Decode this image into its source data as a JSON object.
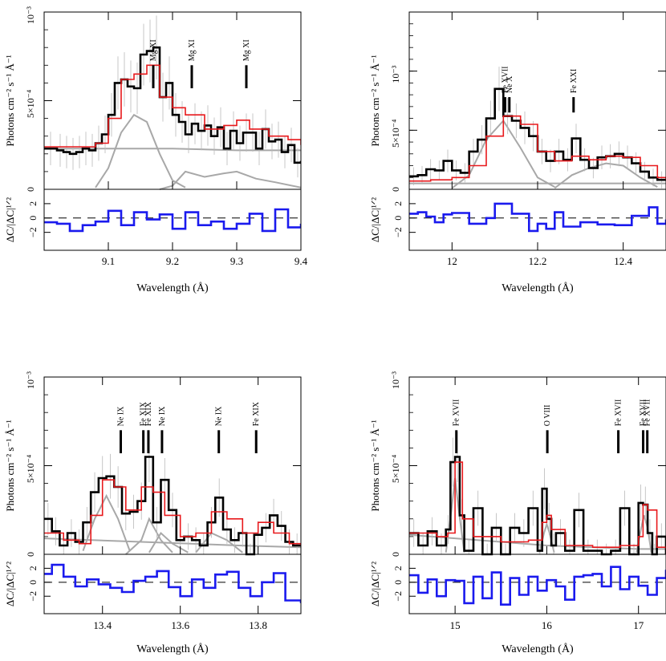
{
  "colors": {
    "data": "#000000",
    "model": "#e8191c",
    "component": "#a8a8a8",
    "residual": "#1a1aee",
    "marker": "#000000"
  },
  "chart_data": [
    {
      "type": "line",
      "panel": "top-left",
      "xlabel": "Wavelength (Å)",
      "ylabel": "Photons cm⁻² s⁻¹ Å⁻¹",
      "res_ylabel": "ΔC/|ΔC|¹ᐟ²",
      "xlim": [
        9.0,
        9.4
      ],
      "ylim": [
        0,
        1.0
      ],
      "y_unit_label": "10⁻³",
      "y_ticks": [
        {
          "v": 0,
          "label": "0"
        },
        {
          "v": 0.5,
          "label": "5×10⁻⁴"
        },
        {
          "v": 1.0,
          "label": "10⁻³"
        }
      ],
      "x_ticks": [
        9.1,
        9.2,
        9.3,
        9.4
      ],
      "res_ylim": [
        -4.5,
        4
      ],
      "res_ticks": [
        {
          "v": 2,
          "label": "2"
        },
        {
          "v": 0,
          "label": "0"
        },
        {
          "v": -2,
          "label": "−2"
        }
      ],
      "lines": [
        {
          "label": "Mg XI",
          "wl": 9.17
        },
        {
          "label": "Mg XI",
          "wl": 9.23
        },
        {
          "label": "Mg XI",
          "wl": 9.315
        }
      ],
      "data_x": [
        9.0,
        9.02,
        9.03,
        9.04,
        9.05,
        9.06,
        9.07,
        9.08,
        9.09,
        9.1,
        9.11,
        9.12,
        9.13,
        9.14,
        9.15,
        9.16,
        9.17,
        9.18,
        9.19,
        9.2,
        9.21,
        9.22,
        9.23,
        9.24,
        9.25,
        9.26,
        9.27,
        9.28,
        9.29,
        9.3,
        9.31,
        9.32,
        9.33,
        9.34,
        9.35,
        9.36,
        9.37,
        9.38,
        9.39,
        9.4
      ],
      "data_y": [
        0.23,
        0.22,
        0.21,
        0.2,
        0.21,
        0.23,
        0.22,
        0.26,
        0.31,
        0.42,
        0.6,
        0.62,
        0.58,
        0.57,
        0.76,
        0.78,
        0.8,
        0.52,
        0.6,
        0.42,
        0.38,
        0.31,
        0.37,
        0.33,
        0.36,
        0.3,
        0.35,
        0.23,
        0.33,
        0.26,
        0.32,
        0.32,
        0.23,
        0.34,
        0.27,
        0.28,
        0.21,
        0.25,
        0.15,
        0.16
      ],
      "model_x": [
        9.0,
        9.05,
        9.08,
        9.1,
        9.12,
        9.14,
        9.16,
        9.18,
        9.2,
        9.22,
        9.25,
        9.28,
        9.3,
        9.32,
        9.35,
        9.38,
        9.4
      ],
      "model_y": [
        0.24,
        0.24,
        0.26,
        0.4,
        0.62,
        0.65,
        0.7,
        0.52,
        0.46,
        0.42,
        0.34,
        0.36,
        0.39,
        0.34,
        0.3,
        0.28,
        0.25
      ],
      "components": [
        {
          "x": [
            9.0,
            9.1,
            9.2,
            9.3,
            9.4
          ],
          "y": [
            0.23,
            0.23,
            0.23,
            0.22,
            0.22
          ]
        },
        {
          "x": [
            9.08,
            9.1,
            9.12,
            9.14,
            9.16,
            9.18,
            9.2,
            9.22
          ],
          "y": [
            0.01,
            0.12,
            0.32,
            0.42,
            0.38,
            0.2,
            0.05,
            0.01
          ]
        },
        {
          "x": [
            9.18,
            9.2,
            9.22,
            9.25,
            9.28,
            9.3,
            9.33,
            9.36,
            9.4
          ],
          "y": [
            0.0,
            0.02,
            0.1,
            0.07,
            0.09,
            0.1,
            0.06,
            0.04,
            0.01
          ]
        }
      ],
      "residual_x": [
        9.0,
        9.02,
        9.04,
        9.06,
        9.08,
        9.1,
        9.12,
        9.14,
        9.16,
        9.18,
        9.2,
        9.22,
        9.24,
        9.26,
        9.28,
        9.3,
        9.32,
        9.34,
        9.36,
        9.38,
        9.4
      ],
      "residual_y": [
        -0.6,
        -0.8,
        -1.8,
        -1.0,
        -0.5,
        1.0,
        -1.0,
        0.8,
        -0.2,
        0.5,
        -1.5,
        0.8,
        -1.0,
        -0.5,
        -1.5,
        -0.8,
        0.6,
        -1.8,
        1.2,
        -1.3,
        -0.8
      ]
    },
    {
      "type": "line",
      "panel": "top-right",
      "xlabel": "Wavelength (Å)",
      "ylabel": "Photons cm⁻² s⁻¹ Å⁻¹",
      "res_ylabel": "ΔC/|ΔC|¹ᐟ²",
      "xlim": [
        11.9,
        12.5
      ],
      "ylim": [
        0,
        1.5
      ],
      "y_ticks": [
        {
          "v": 0,
          "label": "0"
        },
        {
          "v": 0.5,
          "label": "5×10⁻⁴"
        },
        {
          "v": 1.0,
          "label": "10⁻³"
        }
      ],
      "x_ticks": [
        12.0,
        12.2,
        12.4
      ],
      "res_ylim": [
        -4.5,
        4
      ],
      "res_ticks": [
        {
          "v": 2,
          "label": "2"
        },
        {
          "v": 0,
          "label": "0"
        },
        {
          "v": -2,
          "label": "−2"
        }
      ],
      "lines": [
        {
          "label": "Fe XVII",
          "wl": 12.124
        },
        {
          "label": "Ne X",
          "wl": 12.134
        },
        {
          "label": "Fe XXI",
          "wl": 12.284
        }
      ],
      "data_x": [
        11.9,
        11.92,
        11.94,
        11.96,
        11.98,
        12.0,
        12.02,
        12.04,
        12.06,
        12.08,
        12.1,
        12.12,
        12.14,
        12.16,
        12.18,
        12.2,
        12.22,
        12.24,
        12.26,
        12.28,
        12.3,
        12.32,
        12.34,
        12.36,
        12.38,
        12.4,
        12.42,
        12.44,
        12.46,
        12.48,
        12.5
      ],
      "data_y": [
        0.11,
        0.12,
        0.17,
        0.16,
        0.24,
        0.16,
        0.14,
        0.32,
        0.42,
        0.6,
        0.85,
        0.62,
        0.58,
        0.52,
        0.45,
        0.32,
        0.24,
        0.32,
        0.25,
        0.43,
        0.25,
        0.18,
        0.27,
        0.28,
        0.3,
        0.27,
        0.22,
        0.15,
        0.1,
        0.08,
        0.08
      ],
      "model_x": [
        11.9,
        11.95,
        12.0,
        12.04,
        12.08,
        12.12,
        12.16,
        12.2,
        12.24,
        12.28,
        12.32,
        12.36,
        12.4,
        12.44,
        12.48,
        12.5
      ],
      "model_y": [
        0.07,
        0.08,
        0.1,
        0.2,
        0.45,
        0.62,
        0.55,
        0.32,
        0.24,
        0.28,
        0.25,
        0.28,
        0.27,
        0.2,
        0.1,
        0.08
      ],
      "components": [
        {
          "x": [
            11.9,
            12.1,
            12.3,
            12.5
          ],
          "y": [
            0.05,
            0.05,
            0.05,
            0.05
          ]
        },
        {
          "x": [
            12.0,
            12.04,
            12.08,
            12.12,
            12.16,
            12.2,
            12.24
          ],
          "y": [
            0.01,
            0.12,
            0.42,
            0.58,
            0.35,
            0.1,
            0.02
          ]
        },
        {
          "x": [
            12.24,
            12.28,
            12.32,
            12.36,
            12.4,
            12.44,
            12.48
          ],
          "y": [
            0.01,
            0.12,
            0.18,
            0.22,
            0.2,
            0.1,
            0.02
          ]
        }
      ],
      "residual_x": [
        11.9,
        11.92,
        11.94,
        11.96,
        11.98,
        12.0,
        12.04,
        12.08,
        12.1,
        12.14,
        12.18,
        12.2,
        12.22,
        12.24,
        12.26,
        12.3,
        12.34,
        12.38,
        12.42,
        12.46,
        12.48,
        12.5
      ],
      "residual_y": [
        0.6,
        0.8,
        0.2,
        -0.6,
        0.5,
        0.7,
        -0.8,
        0.0,
        2.0,
        0.6,
        -1.8,
        -0.8,
        -1.5,
        0.8,
        -1.2,
        -0.6,
        -0.9,
        -1.0,
        0.3,
        1.5,
        -0.8,
        -0.2
      ]
    },
    {
      "type": "line",
      "panel": "bottom-left",
      "xlabel": "Wavelength (Å)",
      "ylabel": "Photons cm⁻² s⁻¹ Å⁻¹",
      "res_ylabel": "ΔC/|ΔC|¹ᐟ²",
      "xlim": [
        13.25,
        13.91
      ],
      "ylim": [
        0,
        1.0
      ],
      "y_ticks": [
        {
          "v": 0,
          "label": "0"
        },
        {
          "v": 0.5,
          "label": "5×10⁻⁴"
        },
        {
          "v": 1.0,
          "label": "10⁻³"
        }
      ],
      "x_ticks": [
        13.4,
        13.6,
        13.8
      ],
      "res_ylim": [
        -4.5,
        4
      ],
      "res_ticks": [
        {
          "v": 2,
          "label": "2"
        },
        {
          "v": 0,
          "label": "0"
        },
        {
          "v": -2,
          "label": "−2"
        }
      ],
      "lines": [
        {
          "label": "Ne IX",
          "wl": 13.447
        },
        {
          "label": "Fe XIX",
          "wl": 13.505
        },
        {
          "label": "Fe XIX",
          "wl": 13.518
        },
        {
          "label": "Ne IX",
          "wl": 13.553
        },
        {
          "label": "Ne IX",
          "wl": 13.699
        },
        {
          "label": "Fe XIX",
          "wl": 13.795
        }
      ],
      "data_x": [
        13.25,
        13.27,
        13.29,
        13.31,
        13.33,
        13.35,
        13.37,
        13.39,
        13.41,
        13.43,
        13.45,
        13.47,
        13.49,
        13.51,
        13.53,
        13.55,
        13.57,
        13.59,
        13.61,
        13.63,
        13.65,
        13.67,
        13.69,
        13.71,
        13.73,
        13.75,
        13.77,
        13.79,
        13.81,
        13.83,
        13.85,
        13.87,
        13.89,
        13.91
      ],
      "data_y": [
        0.2,
        0.13,
        0.05,
        0.12,
        0.07,
        0.18,
        0.35,
        0.43,
        0.44,
        0.38,
        0.23,
        0.24,
        0.3,
        0.55,
        0.18,
        0.42,
        0.25,
        0.08,
        0.1,
        0.08,
        0.05,
        0.18,
        0.32,
        0.14,
        0.08,
        0.12,
        0.0,
        0.11,
        0.15,
        0.22,
        0.16,
        0.07,
        0.05,
        0.05
      ],
      "model_x": [
        13.25,
        13.3,
        13.34,
        13.37,
        13.4,
        13.43,
        13.46,
        13.5,
        13.53,
        13.56,
        13.6,
        13.64,
        13.68,
        13.72,
        13.76,
        13.8,
        13.84,
        13.88,
        13.91
      ],
      "model_y": [
        0.12,
        0.08,
        0.06,
        0.22,
        0.42,
        0.38,
        0.25,
        0.38,
        0.35,
        0.22,
        0.1,
        0.12,
        0.24,
        0.2,
        0.12,
        0.18,
        0.12,
        0.06,
        0.05
      ],
      "components": [
        {
          "x": [
            13.25,
            13.5,
            13.75,
            13.91
          ],
          "y": [
            0.09,
            0.07,
            0.05,
            0.04
          ]
        },
        {
          "x": [
            13.35,
            13.38,
            13.41,
            13.44,
            13.47
          ],
          "y": [
            0.02,
            0.2,
            0.33,
            0.2,
            0.02
          ]
        },
        {
          "x": [
            13.46,
            13.5,
            13.52,
            13.55,
            13.58
          ],
          "y": [
            0.0,
            0.08,
            0.2,
            0.08,
            0.01
          ]
        },
        {
          "x": [
            13.52,
            13.55,
            13.58,
            13.62
          ],
          "y": [
            0.01,
            0.12,
            0.06,
            0.01
          ]
        },
        {
          "x": [
            13.64,
            13.68,
            13.72,
            13.76
          ],
          "y": [
            0.01,
            0.12,
            0.08,
            0.01
          ]
        }
      ],
      "residual_x": [
        13.25,
        13.27,
        13.3,
        13.33,
        13.36,
        13.39,
        13.42,
        13.45,
        13.48,
        13.51,
        13.54,
        13.57,
        13.6,
        13.63,
        13.66,
        13.69,
        13.72,
        13.75,
        13.78,
        13.81,
        13.84,
        13.87,
        13.91
      ],
      "residual_y": [
        1.2,
        2.5,
        0.8,
        -0.6,
        0.4,
        -0.3,
        -0.8,
        -1.4,
        0.2,
        0.8,
        1.6,
        -0.7,
        -2.0,
        0.4,
        -0.8,
        1.1,
        1.5,
        -0.8,
        -2.0,
        0.0,
        1.3,
        -2.6,
        -3.0
      ]
    },
    {
      "type": "line",
      "panel": "bottom-right",
      "xlabel": "Wavelength (Å)",
      "ylabel": "Photons cm⁻² s⁻¹ Å⁻¹",
      "res_ylabel": "ΔC/|ΔC|¹ᐟ²",
      "xlim": [
        14.5,
        17.3
      ],
      "ylim": [
        0,
        1.0
      ],
      "y_ticks": [
        {
          "v": 0,
          "label": "0"
        },
        {
          "v": 0.5,
          "label": "5×10⁻⁴"
        },
        {
          "v": 1.0,
          "label": "10⁻³"
        }
      ],
      "x_ticks": [
        15,
        16,
        17
      ],
      "res_ylim": [
        -4.5,
        4
      ],
      "res_ticks": [
        {
          "v": 2,
          "label": "2"
        },
        {
          "v": 0,
          "label": "0"
        },
        {
          "v": -2,
          "label": "−2"
        }
      ],
      "lines": [
        {
          "label": "Fe XVII",
          "wl": 15.014
        },
        {
          "label": "O VIII",
          "wl": 16.006
        },
        {
          "label": "Fe XVII",
          "wl": 16.78
        },
        {
          "label": "Fe XVII",
          "wl": 17.051
        },
        {
          "label": "Fe XVII",
          "wl": 17.096
        }
      ],
      "data_x": [
        14.5,
        14.6,
        14.7,
        14.8,
        14.9,
        14.95,
        15.0,
        15.05,
        15.1,
        15.2,
        15.3,
        15.4,
        15.5,
        15.6,
        15.7,
        15.8,
        15.9,
        15.95,
        16.0,
        16.05,
        16.1,
        16.2,
        16.3,
        16.4,
        16.5,
        16.6,
        16.7,
        16.8,
        16.9,
        17.0,
        17.05,
        17.1,
        17.15,
        17.2,
        17.3
      ],
      "data_y": [
        0.12,
        0.05,
        0.13,
        0.05,
        0.14,
        0.52,
        0.55,
        0.22,
        0.02,
        0.26,
        0.0,
        0.15,
        0.0,
        0.15,
        0.12,
        0.26,
        0.02,
        0.37,
        0.2,
        0.05,
        0.12,
        0.02,
        0.25,
        0.02,
        0.02,
        0.0,
        0.02,
        0.26,
        0.0,
        0.29,
        0.28,
        0.12,
        0.0,
        0.1,
        0.0
      ],
      "model_x": [
        14.5,
        14.8,
        14.92,
        15.0,
        15.08,
        15.2,
        15.5,
        15.8,
        15.95,
        16.0,
        16.05,
        16.2,
        16.5,
        16.8,
        17.0,
        17.05,
        17.1,
        17.2,
        17.3
      ],
      "model_y": [
        0.12,
        0.1,
        0.12,
        0.52,
        0.2,
        0.1,
        0.07,
        0.08,
        0.18,
        0.22,
        0.14,
        0.05,
        0.04,
        0.05,
        0.1,
        0.28,
        0.25,
        0.04,
        0.03
      ],
      "components": [
        {
          "x": [
            14.5,
            15.0,
            15.5,
            16.0,
            16.5,
            17.0,
            17.3
          ],
          "y": [
            0.11,
            0.09,
            0.07,
            0.05,
            0.04,
            0.03,
            0.03
          ]
        },
        {
          "x": [
            14.9,
            14.96,
            15.0,
            15.04,
            15.1
          ],
          "y": [
            0.01,
            0.25,
            0.43,
            0.25,
            0.01
          ]
        },
        {
          "x": [
            15.92,
            15.97,
            16.0,
            16.03,
            16.08
          ],
          "y": [
            0.01,
            0.12,
            0.17,
            0.12,
            0.01
          ]
        },
        {
          "x": [
            16.98,
            17.03,
            17.06,
            17.1,
            17.14
          ],
          "y": [
            0.01,
            0.15,
            0.22,
            0.15,
            0.01
          ]
        }
      ],
      "residual_x": [
        14.5,
        14.6,
        14.7,
        14.8,
        14.9,
        15.0,
        15.1,
        15.2,
        15.3,
        15.4,
        15.5,
        15.6,
        15.7,
        15.8,
        15.9,
        16.0,
        16.1,
        16.2,
        16.3,
        16.4,
        16.5,
        16.6,
        16.7,
        16.8,
        16.9,
        17.0,
        17.1,
        17.2,
        17.3
      ],
      "residual_y": [
        1.0,
        -1.5,
        0.4,
        -2.0,
        0.3,
        0.2,
        -3.0,
        0.8,
        -2.3,
        1.4,
        -3.2,
        0.6,
        -1.8,
        0.8,
        -1.2,
        0.3,
        -0.6,
        -2.5,
        0.8,
        1.0,
        1.2,
        -0.6,
        2.2,
        -1.0,
        0.8,
        -0.5,
        -1.8,
        0.6,
        1.8
      ]
    }
  ]
}
